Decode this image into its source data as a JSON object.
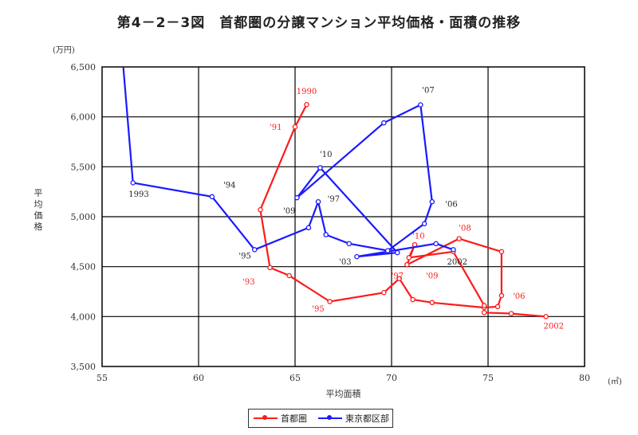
{
  "title": "第4－2－3図　首都圏の分譲マンション平均価格・面積の推移",
  "chart_data": {
    "type": "line",
    "title": "第4－2－3図　首都圏の分譲マンション平均価格・面積の推移",
    "xlabel": "平均面積",
    "x_unit": "(㎡)",
    "ylabel": "平均価格",
    "y_unit": "(万円)",
    "xlim": [
      55,
      80
    ],
    "ylim": [
      3500,
      6500
    ],
    "x_ticks": [
      "55",
      "60",
      "65",
      "70",
      "75",
      "80"
    ],
    "y_ticks": [
      "3,500",
      "4,000",
      "4,500",
      "5,000",
      "5,500",
      "6,000",
      "6,500"
    ],
    "grid": true,
    "legend_position": "bottom-center",
    "series": [
      {
        "name": "首都圏",
        "color": "#ff1a1a",
        "points": [
          {
            "x": 65.6,
            "y": 6123
          },
          {
            "x": 65.0,
            "y": 5900
          },
          {
            "x": 63.2,
            "y": 5070
          },
          {
            "x": 63.7,
            "y": 4490
          },
          {
            "x": 64.7,
            "y": 4410
          },
          {
            "x": 66.8,
            "y": 4150
          },
          {
            "x": 69.6,
            "y": 4240
          },
          {
            "x": 70.4,
            "y": 4380
          },
          {
            "x": 71.1,
            "y": 4170
          },
          {
            "x": 72.1,
            "y": 4140
          },
          {
            "x": 74.8,
            "y": 4090
          },
          {
            "x": 75.5,
            "y": 4100
          },
          {
            "x": 75.7,
            "y": 4210
          },
          {
            "x": 75.7,
            "y": 4650
          },
          {
            "x": 73.5,
            "y": 4780
          },
          {
            "x": 70.8,
            "y": 4520
          },
          {
            "x": 71.2,
            "y": 4720
          },
          {
            "x": 70.9,
            "y": 4590
          },
          {
            "x": 73.2,
            "y": 4650
          },
          {
            "x": 74.8,
            "y": 4110
          },
          {
            "x": 74.8,
            "y": 4040
          },
          {
            "x": 76.2,
            "y": 4030
          },
          {
            "x": 78.0,
            "y": 4000
          }
        ]
      },
      {
        "name": "東京都区部",
        "color": "#1a1aff",
        "points": [
          {
            "x": 56.1,
            "y": 6500
          },
          {
            "x": 56.6,
            "y": 5340
          },
          {
            "x": 60.7,
            "y": 5200
          },
          {
            "x": 62.9,
            "y": 4670
          },
          {
            "x": 65.7,
            "y": 4890
          },
          {
            "x": 66.2,
            "y": 5150
          },
          {
            "x": 66.6,
            "y": 4820
          },
          {
            "x": 67.8,
            "y": 4730
          },
          {
            "x": 69.8,
            "y": 4660
          },
          {
            "x": 71.7,
            "y": 4930
          },
          {
            "x": 72.1,
            "y": 5150
          },
          {
            "x": 71.5,
            "y": 6120
          },
          {
            "x": 69.6,
            "y": 5940
          },
          {
            "x": 65.1,
            "y": 5190
          },
          {
            "x": 66.3,
            "y": 5490
          },
          {
            "x": 66.3,
            "y": 5490
          },
          {
            "x": 70.3,
            "y": 4640
          },
          {
            "x": 68.2,
            "y": 4600
          },
          {
            "x": 72.3,
            "y": 4730
          },
          {
            "x": 73.2,
            "y": 4670
          }
        ]
      }
    ],
    "annotations": [
      {
        "text": "1990",
        "x": 65.6,
        "y": 6230,
        "series": "首都圏"
      },
      {
        "text": "'91",
        "x": 64.0,
        "y": 5870,
        "series": "首都圏"
      },
      {
        "text": "'93",
        "x": 62.6,
        "y": 4320,
        "series": "首都圏"
      },
      {
        "text": "'95",
        "x": 66.2,
        "y": 4050,
        "series": "首都圏"
      },
      {
        "text": "'97",
        "x": 70.3,
        "y": 4380,
        "series": "首都圏"
      },
      {
        "text": "'09",
        "x": 72.1,
        "y": 4380,
        "series": "首都圏"
      },
      {
        "text": "'10",
        "x": 71.4,
        "y": 4780,
        "series": "首都圏"
      },
      {
        "text": "'08",
        "x": 73.8,
        "y": 4860,
        "series": "首都圏"
      },
      {
        "text": "'06",
        "x": 76.6,
        "y": 4180,
        "series": "首都圏"
      },
      {
        "text": "2002",
        "x": 78.4,
        "y": 3880,
        "series": "首都圏"
      },
      {
        "text": "1993",
        "x": 56.9,
        "y": 5200,
        "series": "東京都区部"
      },
      {
        "text": "'94",
        "x": 61.6,
        "y": 5290,
        "series": "東京都区部"
      },
      {
        "text": "'95",
        "x": 62.4,
        "y": 4580,
        "series": "東京都区部"
      },
      {
        "text": "'97",
        "x": 67.0,
        "y": 5150,
        "series": "東京都区部"
      },
      {
        "text": "'09",
        "x": 64.7,
        "y": 5030,
        "series": "東京都区部"
      },
      {
        "text": "'10",
        "x": 66.6,
        "y": 5600,
        "series": "東京都区部"
      },
      {
        "text": "'07",
        "x": 71.9,
        "y": 6240,
        "series": "東京都区部"
      },
      {
        "text": "'06",
        "x": 73.1,
        "y": 5100,
        "series": "東京都区部"
      },
      {
        "text": "'03",
        "x": 67.6,
        "y": 4520,
        "series": "東京都区部"
      },
      {
        "text": "2002",
        "x": 73.4,
        "y": 4520,
        "series": "東京都区部"
      }
    ]
  },
  "legend": {
    "items": [
      {
        "label": "首都圏",
        "color": "#ff1a1a"
      },
      {
        "label": "東京都区部",
        "color": "#1a1aff"
      }
    ]
  }
}
